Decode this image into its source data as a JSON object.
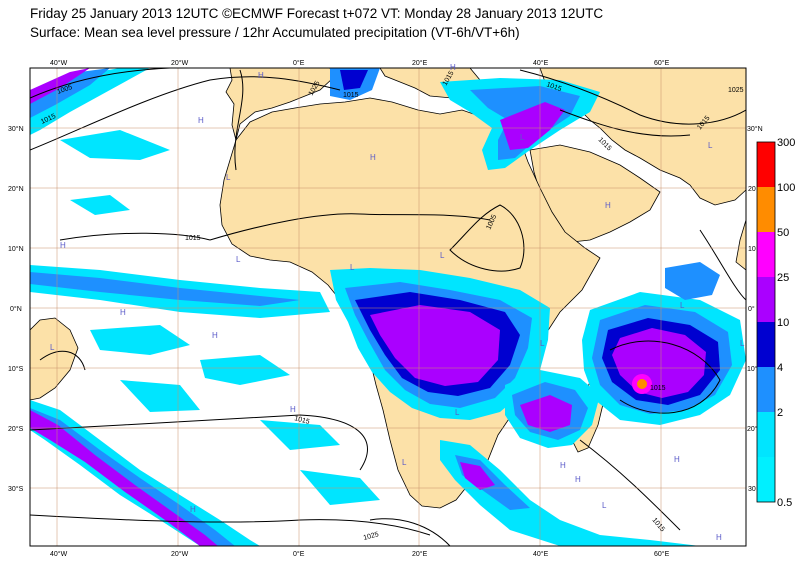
{
  "header": {
    "line1": "Friday 25 January 2013 12UTC ©ECMWF Forecast t+072 VT: Monday 28 January 2013 12UTC",
    "line2": "Surface: Mean sea level pressure / 12hr Accumulated precipitation (VT-6h/VT+6h)"
  },
  "axes": {
    "top_lon_labels": [
      "40°W",
      "20°W",
      "0°E",
      "20°E",
      "40°E",
      "60°E"
    ],
    "bottom_lon_labels": [
      "40°W",
      "20°W",
      "0°E",
      "20°E",
      "40°E",
      "60°E"
    ],
    "left_lat_labels": [
      "30°N",
      "20°N",
      "10°N",
      "0°N",
      "10°S",
      "20°S",
      "30°S"
    ],
    "right_lat_labels": [
      "30°N",
      "20",
      "10",
      "0°",
      "10°S",
      "20°S",
      "30"
    ]
  },
  "legend": {
    "values": [
      "300",
      "100",
      "50",
      "25",
      "10",
      "4",
      "2",
      "0.5"
    ],
    "colors": [
      "#ff0000",
      "#ff8c00",
      "#ff00ff",
      "#aa00ff",
      "#0000d0",
      "#1e90ff",
      "#00e5ff",
      "#ffffff"
    ]
  },
  "isobar_labels": [
    "1005",
    "1015",
    "1015",
    "1025",
    "1015",
    "1015",
    "1015",
    "1025",
    "1015",
    "1015",
    "1005",
    "1015",
    "1015",
    "1025",
    "1015"
  ],
  "pressure_centres": [
    "H",
    "H",
    "H",
    "H",
    "H",
    "H",
    "H",
    "H",
    "H",
    "H",
    "H",
    "L",
    "L",
    "L",
    "L",
    "L",
    "L",
    "L",
    "L",
    "L",
    "L",
    "H",
    "L",
    "H",
    "L",
    "L",
    "H"
  ],
  "colors": {
    "land": "#fce1a8",
    "ocean": "#ffffff",
    "grid": "#c8906a",
    "coast": "#000000",
    "isobar": "#000000"
  }
}
